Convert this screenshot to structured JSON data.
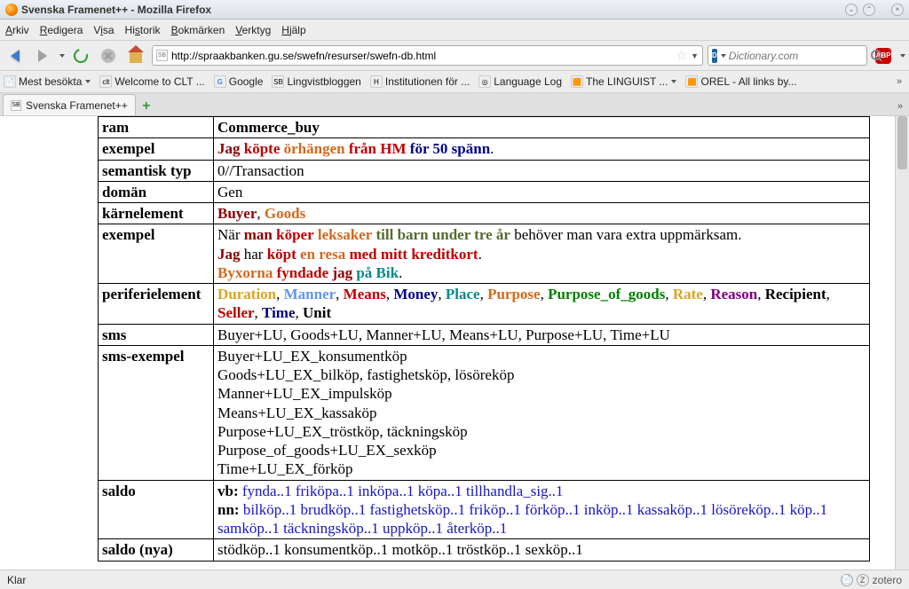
{
  "window": {
    "title": "Svenska Framenet++ - Mozilla Firefox"
  },
  "menu": {
    "items": [
      "Arkiv",
      "Redigera",
      "Visa",
      "Historik",
      "Bokmärken",
      "Verktyg",
      "Hjälp"
    ]
  },
  "url": {
    "value": "http://spraakbanken.gu.se/swefn/resurser/swefn-db.html"
  },
  "search": {
    "placeholder": "Dictionary.com",
    "engine": "D"
  },
  "bookmarks": [
    {
      "label": "Mest besökta",
      "icon": "📄",
      "dd": true
    },
    {
      "label": "Welcome to CLT ...",
      "icon": "clt"
    },
    {
      "label": "Google",
      "icon": "G",
      "gcolor": true
    },
    {
      "label": "Lingvistbloggen",
      "icon": "SB"
    },
    {
      "label": "Institutionen för ...",
      "icon": "H"
    },
    {
      "label": "Language Log",
      "icon": "◎"
    },
    {
      "label": "The LINGUIST ...",
      "icon": "🟧",
      "dd": true
    },
    {
      "label": "OREL - All links by...",
      "icon": "🟧"
    }
  ],
  "tab": {
    "label": "Svenska Framenet++"
  },
  "table": {
    "ram": "Commerce_buy",
    "semtyp": "0//Transaction",
    "doman": "Gen",
    "sms": "Buyer+LU, Goods+LU, Manner+LU, Means+LU, Purpose+LU, Time+LU",
    "smsex": "Buyer+LU_EX_konsumentköp\nGoods+LU_EX_bilköp, fastighetsköp, lösöreköp\nManner+LU_EX_impulsköp\nMeans+LU_EX_kassaköp\nPurpose+LU_EX_tröstköp, täckningsköp\nPurpose_of_goods+LU_EX_sexköp\nTime+LU_EX_förköp",
    "saldony": "stödköp..1 konsumentköp..1 motköp..1 tröstköp..1 sexköp..1"
  },
  "status": {
    "text": "Klar",
    "zotero": "zotero"
  },
  "labels": {
    "ram": "ram",
    "exempel": "exempel",
    "semtyp": "semantisk typ",
    "doman": "domän",
    "karn": "kärnelement",
    "peri": "periferielement",
    "sms": "sms",
    "smsex": "sms-exempel",
    "saldo": "saldo",
    "saldony": "saldo (nya)"
  },
  "karn": {
    "buyer": "Buyer",
    "goods": "Goods"
  },
  "ex1": {
    "p1": "Jag",
    "p2": "köpte",
    "p3": "örhängen",
    "p4": "från HM",
    "p5": "för 50 spänn",
    "dot": "."
  },
  "ex2a": {
    "p1": "När",
    "p2": "man",
    "p3": "köper",
    "p4": "leksaker",
    "p5": "till barn under tre år",
    "p6": "behöver man vara extra uppmärksam."
  },
  "ex2b": {
    "p1": "Jag",
    "p2": "har",
    "p3": "köpt",
    "p4": "en resa",
    "p5": "med mitt kreditkort",
    "dot": "."
  },
  "ex2c": {
    "p1": "Byxorna",
    "p2": "fyndade",
    "p3": "jag",
    "p4": "på Bik",
    "dot": "."
  },
  "peri": {
    "duration": "Duration",
    "manner": "Manner",
    "means": "Means",
    "money": "Money",
    "place": "Place",
    "purpose": "Purpose",
    "pog": "Purpose_of_goods",
    "rate": "Rate",
    "reason": "Reason",
    "recipient": "Recipient",
    "seller": "Seller",
    "time": "Time",
    "unit": "Unit"
  },
  "saldo": {
    "vb_lbl": "vb:",
    "nn_lbl": "nn:",
    "vb": [
      "fynda..1",
      "friköpa..1",
      "inköpa..1",
      "köpa..1",
      "tillhandla_sig..1"
    ],
    "nn": [
      "bilköp..1",
      "brudköp..1",
      "fastighetsköp..1",
      "friköp..1",
      "förköp..1",
      "inköp..1",
      "kassaköp..1",
      "lösöreköp..1",
      "köp..1",
      "samköp..1",
      "täckningsköp..1",
      "uppköp..1",
      "återköp..1"
    ]
  }
}
